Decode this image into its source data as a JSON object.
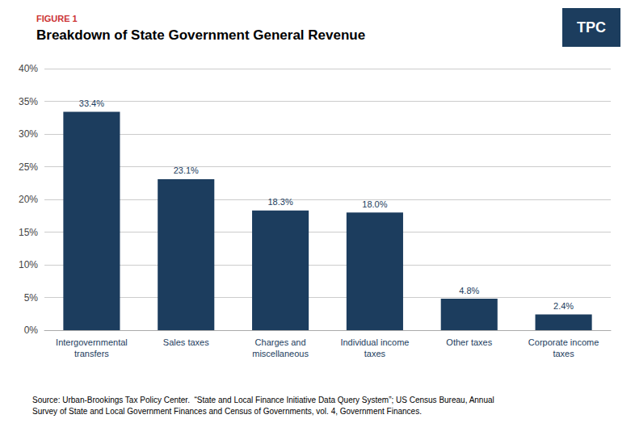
{
  "chart_data": {
    "type": "bar",
    "subtitle": "FIGURE 1",
    "title": "Breakdown of State Government General Revenue",
    "categories": [
      "Intergovernmental\ntransfers",
      "Sales taxes",
      "Charges and\nmiscellaneous",
      "Individual income\ntaxes",
      "Other taxes",
      "Corporate income\ntaxes"
    ],
    "values": [
      33.4,
      23.1,
      18.3,
      18.0,
      4.8,
      2.4
    ],
    "value_labels": [
      "33.4%",
      "23.1%",
      "18.3%",
      "18.0%",
      "4.8%",
      "2.4%"
    ],
    "data_labels": true,
    "color": "#1c3d5e",
    "ylim": [
      0,
      40
    ],
    "yticks": [
      {
        "value": 0,
        "label": "0%"
      },
      {
        "value": 5,
        "label": "5%"
      },
      {
        "value": 10,
        "label": "10%"
      },
      {
        "value": 15,
        "label": "15%"
      },
      {
        "value": 20,
        "label": "20%"
      },
      {
        "value": 25,
        "label": "25%"
      },
      {
        "value": 30,
        "label": "30%"
      },
      {
        "value": 35,
        "label": "35%"
      },
      {
        "value": 40,
        "label": "40%"
      }
    ],
    "grid": true,
    "annotations": [
      "Source: Urban-Brookings Tax Policy Center.  “State and Local Finance Initiative Data Query System”; US Census Bureau, Annual",
      "Survey of State and Local Government Finances and Census of Governments, vol. 4, Government Finances.",
      "TPC"
    ]
  }
}
